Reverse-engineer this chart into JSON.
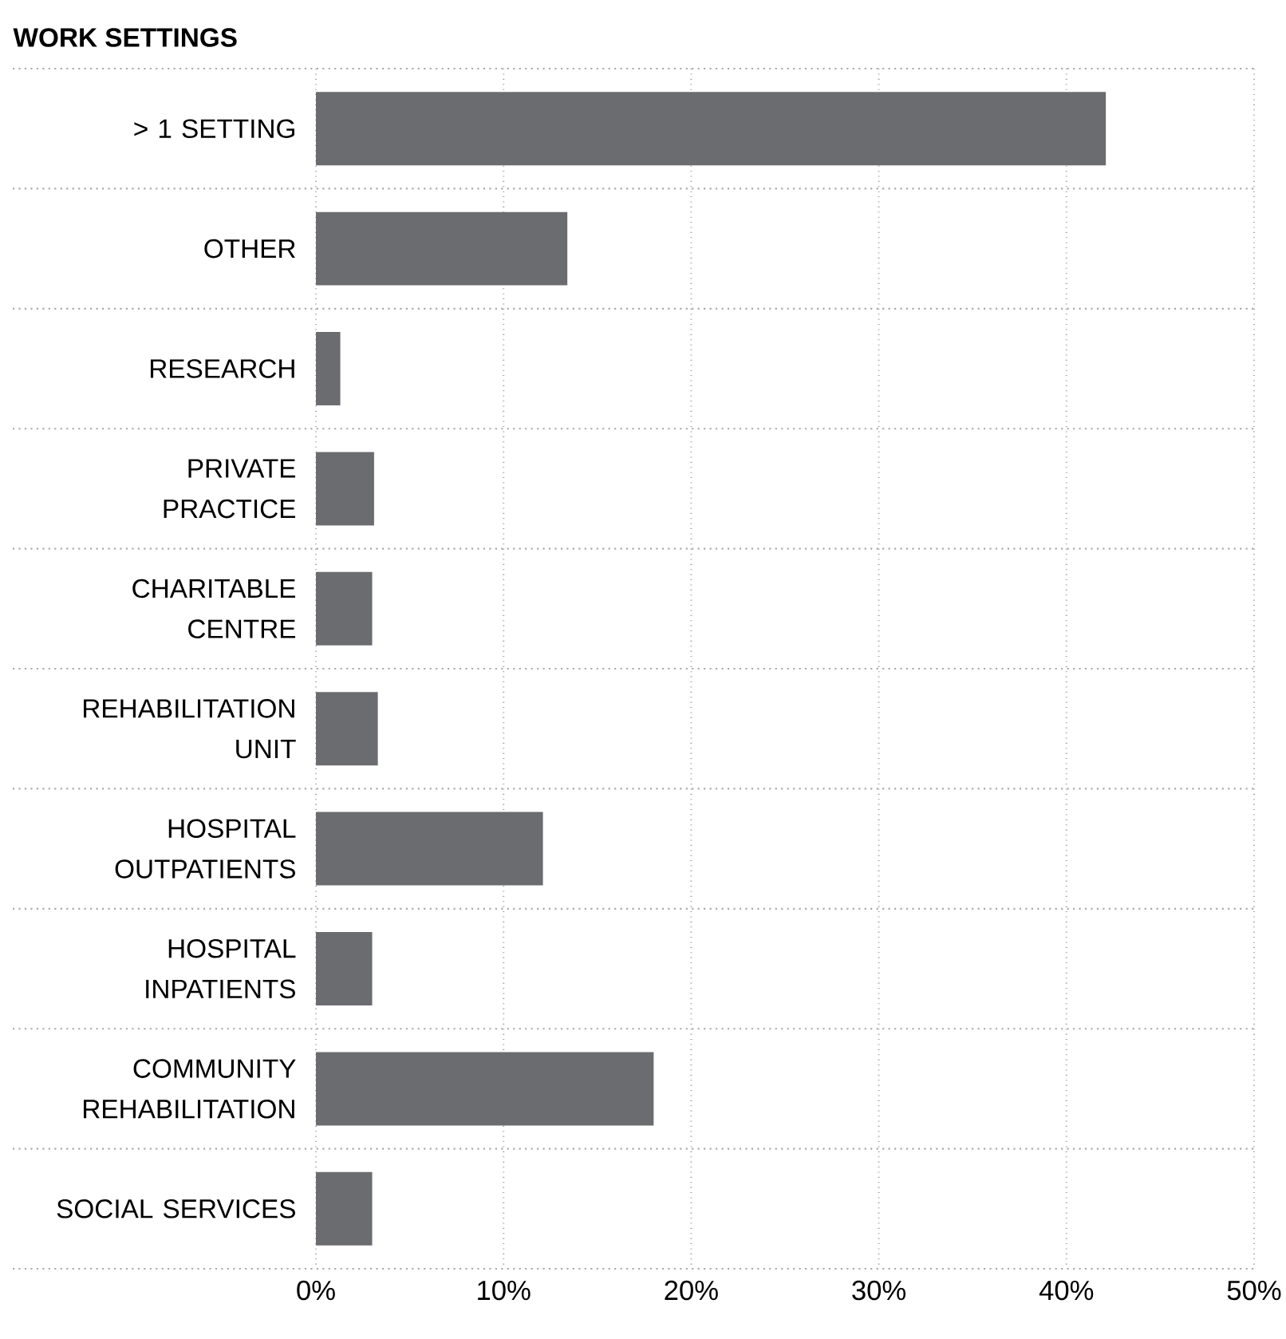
{
  "chart_data": {
    "type": "bar",
    "orientation": "horizontal",
    "title": "WORK SETTINGS",
    "categories": [
      "> 1 SETTING",
      "OTHER",
      "RESEARCH",
      "PRIVATE PRACTICE",
      "CHARITABLE CENTRE",
      "REHABILITATION UNIT",
      "HOSPITAL OUTPATIENTS",
      "HOSPITAL INPATIENTS",
      "COMMUNITY REHABILITATION",
      "SOCIAL SERVICES"
    ],
    "values": [
      42.1,
      13.4,
      1.3,
      3.1,
      3.0,
      3.3,
      12.1,
      3.0,
      18.0,
      3.0
    ],
    "color": "#6b6c70",
    "xlim": [
      0,
      50
    ],
    "xticks": [
      {
        "value": 0,
        "label": "0%"
      },
      {
        "value": 10,
        "label": "10%"
      },
      {
        "value": 20,
        "label": "20%"
      },
      {
        "value": 30,
        "label": "30%"
      },
      {
        "value": 40,
        "label": "40%"
      },
      {
        "value": 50,
        "label": "50%"
      }
    ],
    "grid": "x"
  }
}
